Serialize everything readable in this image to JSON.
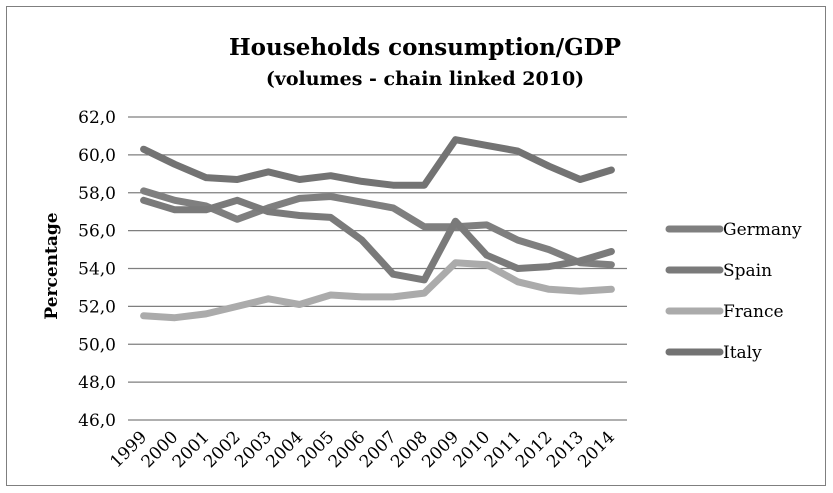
{
  "chart_data": {
    "type": "line",
    "title": "Households consumption/GDP",
    "subtitle": "(volumes - chain linked 2010)",
    "xlabel": "",
    "ylabel": "Percentage",
    "ylim": [
      46,
      62
    ],
    "yticks": [
      "46,0",
      "48,0",
      "50,0",
      "52,0",
      "54,0",
      "56,0",
      "58,0",
      "60,0",
      "62,0"
    ],
    "categories": [
      "1999",
      "2000",
      "2001",
      "2002",
      "2003",
      "2004",
      "2005",
      "2006",
      "2007",
      "2008",
      "2009",
      "2010",
      "2011",
      "2012",
      "2013",
      "2014"
    ],
    "grid": true,
    "legend_position": "right",
    "series": [
      {
        "name": "Germany",
        "color": "#7f7f7f",
        "values": [
          58.1,
          57.6,
          57.3,
          56.6,
          57.2,
          57.7,
          57.8,
          57.5,
          57.2,
          56.2,
          56.2,
          56.3,
          55.5,
          55.0,
          54.3,
          54.2
        ]
      },
      {
        "name": "Spain",
        "color": "#7a7a7a",
        "values": [
          57.6,
          57.1,
          57.1,
          57.6,
          57.0,
          56.8,
          56.7,
          55.5,
          53.7,
          53.4,
          56.5,
          54.7,
          54.0,
          54.1,
          54.4,
          54.9
        ]
      },
      {
        "name": "France",
        "color": "#ababab",
        "values": [
          51.5,
          51.4,
          51.6,
          52.0,
          52.4,
          52.1,
          52.6,
          52.5,
          52.5,
          52.7,
          54.3,
          54.2,
          53.3,
          52.9,
          52.8,
          52.9
        ]
      },
      {
        "name": "Italy",
        "color": "#737373",
        "values": [
          60.3,
          59.5,
          58.8,
          58.7,
          59.1,
          58.7,
          58.9,
          58.6,
          58.4,
          58.4,
          60.8,
          60.5,
          60.2,
          59.4,
          58.7,
          59.2
        ]
      }
    ]
  }
}
